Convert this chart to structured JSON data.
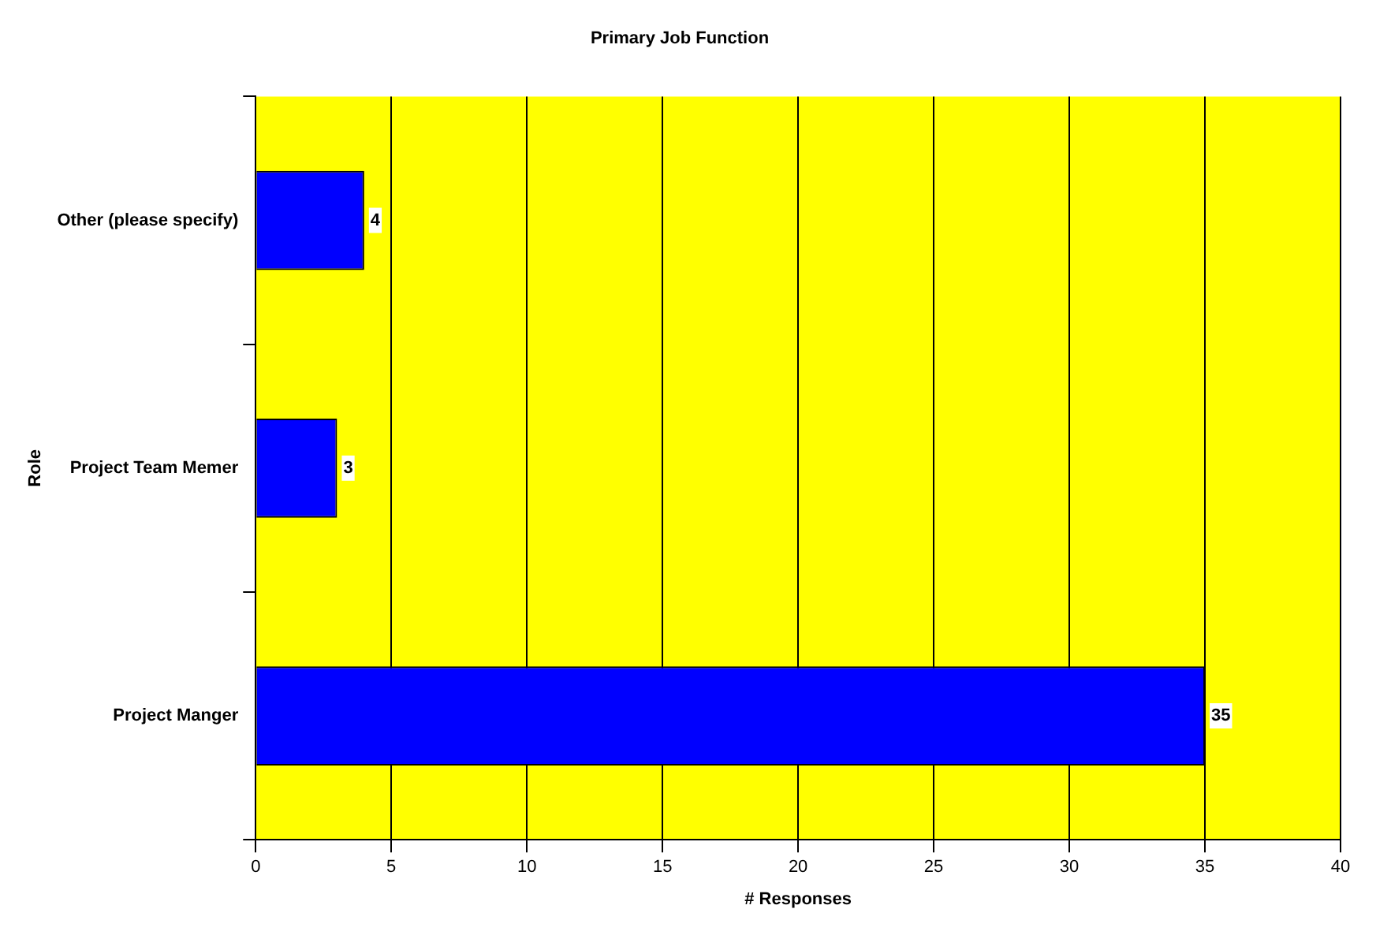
{
  "chart_data": {
    "type": "bar",
    "orientation": "horizontal",
    "title": "Primary Job Function",
    "xlabel": "# Responses",
    "ylabel": "Role",
    "categories": [
      "Other (please specify)",
      "Project Team Memer",
      "Project Manger"
    ],
    "values": [
      4,
      3,
      35
    ],
    "color": "#0000ff",
    "xlim": [
      0,
      40
    ],
    "xticks": [
      0,
      5,
      10,
      15,
      20,
      25,
      30,
      35,
      40
    ],
    "grid": "x",
    "data_labels": true
  }
}
